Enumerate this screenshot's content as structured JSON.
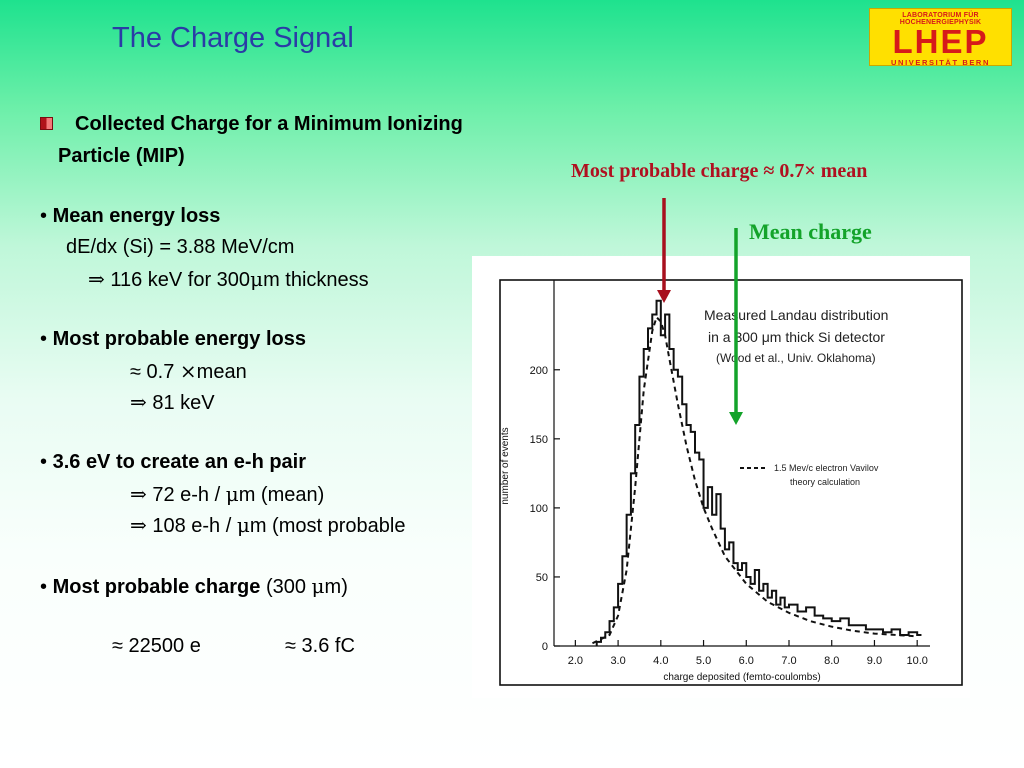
{
  "slide": {
    "title": "The Charge Signal",
    "logo": {
      "line1": "LABORATORIUM FÜR HOCHENERGIEPHYSIK",
      "line2": "LHEP",
      "line3": "UNIVERSITÄT BERN"
    },
    "heading_line1": "Collected Charge for a  Minimum Ionizing",
    "heading_line2": "Particle (MIP)",
    "mean_energy_loss": {
      "bullet": "•",
      "label": "Mean energy loss",
      "line1": "dE/dx (Si) = 3.88 MeV/cm",
      "line2_arrow": "⇒",
      "line2": " 116 keV for 300",
      "line2_mu": "μ",
      "line2_tail": "m thickness"
    },
    "most_probable_energy_loss": {
      "bullet": "•",
      "label": "Most probable energy loss",
      "line1": "≈ 0.7 ",
      "line1_times": "×",
      "line1_tail": "mean",
      "line2_arrow": "⇒",
      "line2": " 81 keV"
    },
    "eh_pair": {
      "bullet": "•",
      "label": "3.6 eV to create an e-h pair",
      "line1_arrow": "⇒",
      "line1": " 72 e-h / ",
      "line1_mu": "μ",
      "line1_tail": "m (mean)",
      "line2_arrow": "⇒",
      "line2": " 108 e-h / ",
      "line2_mu": "μ",
      "line2_tail": "m (most probable"
    },
    "most_probable_charge": {
      "bullet": "•",
      "label": "Most probable charge",
      "paren_open": " (300 ",
      "mu": "μ",
      "paren_close": "m)",
      "value1": "≈ 22500 e",
      "value2": "≈ 3.6 fC"
    },
    "annotation_most_probable": "Most probable charge ≈ 0.7× mean",
    "annotation_mean": "Mean charge",
    "colors": {
      "title": "#2a3ba6",
      "annotation_most_probable": "#b01020",
      "annotation_mean": "#13a32a",
      "arrow_most_probable": "#a8101e",
      "arrow_mean": "#13a32a"
    }
  },
  "figure": {
    "legend_title_1": "Measured Landau distribution",
    "legend_title_2": "in a 300 μm thick Si detector",
    "legend_title_3": "(Wood et al., Univ. Oklahoma)",
    "legend_theory_1": "1.5 Mev/c electron Vavilov",
    "legend_theory_2": "theory calculation",
    "ylabel": "number of events",
    "xlabel": "charge deposited  (femto-coulombs)",
    "y_ticks": [
      "0",
      "50",
      "100",
      "150",
      "200"
    ],
    "x_ticks": [
      "2.0",
      "3.0",
      "4.0",
      "5.0",
      "6.0",
      "7.0",
      "8.0",
      "9.0",
      "10.0"
    ]
  },
  "chart_data": {
    "type": "line",
    "xlabel": "charge deposited  (femto-coulombs)",
    "ylabel": "number of events",
    "xlim": [
      1.5,
      10.3
    ],
    "ylim": [
      0,
      265
    ],
    "series": [
      {
        "style": "histogram",
        "x": [
          2.5,
          2.6,
          2.7,
          2.8,
          2.9,
          3.0,
          3.1,
          3.2,
          3.3,
          3.4,
          3.5,
          3.6,
          3.7,
          3.8,
          3.9,
          4.0,
          4.1,
          4.2,
          4.3,
          4.4,
          4.5,
          4.6,
          4.7,
          4.8,
          4.9,
          5.0,
          5.1,
          5.2,
          5.3,
          5.4,
          5.5,
          5.6,
          5.7,
          5.8,
          5.9,
          6.0,
          6.1,
          6.2,
          6.3,
          6.4,
          6.5,
          6.6,
          6.7,
          6.8,
          6.9,
          7.0,
          7.2,
          7.4,
          7.6,
          7.8,
          8.0,
          8.2,
          8.4,
          8.6,
          8.8,
          9.0,
          9.2,
          9.4,
          9.6,
          9.8,
          10.0
        ],
        "y": [
          3,
          6,
          10,
          18,
          28,
          45,
          65,
          95,
          125,
          160,
          195,
          215,
          230,
          240,
          250,
          225,
          240,
          215,
          200,
          195,
          175,
          160,
          155,
          140,
          135,
          100,
          115,
          95,
          110,
          85,
          70,
          75,
          60,
          55,
          60,
          50,
          45,
          55,
          40,
          45,
          35,
          40,
          30,
          35,
          28,
          30,
          25,
          28,
          22,
          20,
          18,
          20,
          15,
          15,
          12,
          12,
          10,
          12,
          8,
          10,
          8
        ]
      },
      {
        "name": "1.5 Mev/c electron Vavilov theory calculation",
        "style": "dashed",
        "x": [
          2.4,
          2.8,
          3.0,
          3.2,
          3.4,
          3.6,
          3.8,
          3.9,
          4.0,
          4.1,
          4.2,
          4.4,
          4.6,
          4.8,
          5.0,
          5.2,
          5.5,
          6.0,
          6.5,
          7.0,
          7.5,
          8.0,
          8.5,
          9.0,
          9.5,
          10.0
        ],
        "y": [
          2,
          8,
          22,
          55,
          115,
          185,
          228,
          238,
          235,
          225,
          208,
          175,
          145,
          120,
          100,
          85,
          65,
          45,
          32,
          24,
          18,
          14,
          11,
          9,
          8,
          7
        ]
      }
    ]
  }
}
